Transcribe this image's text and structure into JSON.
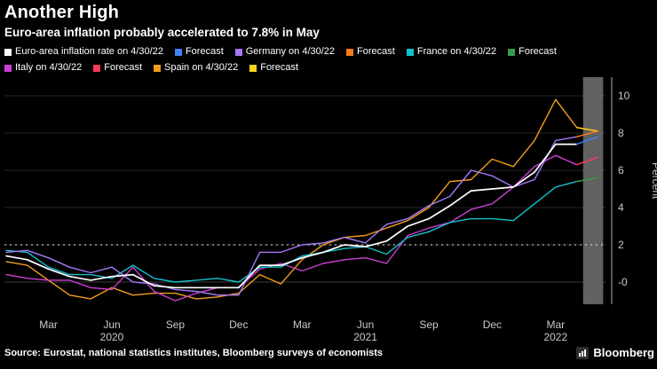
{
  "header": {
    "title": "Another High",
    "subtitle": "Euro-area inflation probably accelerated to 7.8% in May"
  },
  "footer": {
    "source": "Source: Eurostat, national statistics institutes, Bloomberg surveys of economists",
    "brand": "Bloomberg"
  },
  "chart_data": {
    "type": "line",
    "x_monthly_start": "2020-01",
    "x_ticks": [
      {
        "index": 2,
        "label": "Mar"
      },
      {
        "index": 5,
        "label": "Jun"
      },
      {
        "index": 8,
        "label": "Sep"
      },
      {
        "index": 11,
        "label": "Dec"
      },
      {
        "index": 14,
        "label": "Mar"
      },
      {
        "index": 17,
        "label": "Jun"
      },
      {
        "index": 20,
        "label": "Sep"
      },
      {
        "index": 23,
        "label": "Dec"
      },
      {
        "index": 26,
        "label": "Mar"
      }
    ],
    "year_labels": [
      {
        "index": 5,
        "label": "2020"
      },
      {
        "index": 17,
        "label": "2021"
      },
      {
        "index": 26,
        "label": "2022"
      }
    ],
    "ylabel": "Percent",
    "ylim": [
      -1.2,
      10.9
    ],
    "yticks": [
      {
        "value": 10,
        "label": "10"
      },
      {
        "value": 8,
        "label": "8"
      },
      {
        "value": 6,
        "label": "6"
      },
      {
        "value": 4,
        "label": "4"
      },
      {
        "value": 2,
        "label": "2"
      },
      {
        "value": 0,
        "label": "-0"
      }
    ],
    "reference_line": {
      "value": 2,
      "style": "dashed",
      "color": "#e8e8e8"
    },
    "forecast_band": {
      "start_index": 27.3,
      "end_index": 28.25,
      "color": "#616161"
    },
    "grid_color": "#262626",
    "axis_color": "#ababab",
    "tick_label_color": "#c9c9c9",
    "series": [
      {
        "key": "euro-area",
        "name": "Euro-area inflation rate on 4/30/22",
        "color": "#ffffff",
        "width": 1.7,
        "values": [
          1.4,
          1.2,
          0.7,
          0.3,
          0.1,
          0.3,
          0.4,
          -0.2,
          -0.3,
          -0.3,
          -0.3,
          -0.3,
          0.9,
          0.9,
          1.3,
          1.6,
          2.0,
          1.9,
          2.2,
          3.0,
          3.4,
          4.1,
          4.9,
          5.0,
          5.1,
          5.9,
          7.4,
          7.4
        ],
        "forecast": {
          "label": "Forecast",
          "color": "#3f82f7",
          "value": 7.8
        }
      },
      {
        "key": "germany",
        "name": "Germany on 4/30/22",
        "color": "#a579f7",
        "width": 1.4,
        "values": [
          1.6,
          1.7,
          1.3,
          0.8,
          0.5,
          0.8,
          0.0,
          -0.1,
          -0.4,
          -0.5,
          -0.7,
          -0.7,
          1.6,
          1.6,
          2.0,
          2.1,
          2.4,
          2.1,
          3.1,
          3.4,
          4.1,
          4.6,
          6.0,
          5.7,
          5.1,
          5.5,
          7.6,
          7.8
        ],
        "forecast": {
          "label": "Forecast",
          "color": "#fb7b16",
          "value": 8.1
        }
      },
      {
        "key": "france",
        "name": "France on 4/30/22",
        "color": "#13c1cd",
        "width": 1.4,
        "values": [
          1.7,
          1.6,
          0.8,
          0.4,
          0.4,
          0.2,
          0.9,
          0.2,
          0.0,
          0.1,
          0.2,
          0.0,
          0.8,
          0.8,
          1.4,
          1.6,
          1.8,
          1.9,
          1.5,
          2.4,
          2.7,
          3.2,
          3.4,
          3.4,
          3.3,
          4.2,
          5.1,
          5.4
        ],
        "forecast": {
          "label": "Forecast",
          "color": "#369c4c",
          "value": 5.6
        }
      },
      {
        "key": "italy",
        "name": "Italy on 4/30/22",
        "color": "#cb3fd4",
        "width": 1.4,
        "values": [
          0.4,
          0.2,
          0.1,
          0.1,
          -0.3,
          -0.4,
          0.8,
          -0.5,
          -1.0,
          -0.6,
          -0.3,
          -0.3,
          0.7,
          1.0,
          0.6,
          1.0,
          1.2,
          1.3,
          1.0,
          2.5,
          2.9,
          3.2,
          3.9,
          4.2,
          5.1,
          6.2,
          6.8,
          6.3
        ],
        "forecast": {
          "label": "Forecast",
          "color": "#f8395a",
          "value": 6.7
        }
      },
      {
        "key": "spain",
        "name": "Spain on 4/30/22",
        "color": "#f39c1d",
        "width": 1.4,
        "values": [
          1.1,
          0.9,
          0.1,
          -0.7,
          -0.9,
          -0.3,
          -0.7,
          -0.6,
          -0.6,
          -0.9,
          -0.8,
          -0.6,
          0.4,
          -0.1,
          1.2,
          2.0,
          2.4,
          2.5,
          2.9,
          3.3,
          4.0,
          5.4,
          5.5,
          6.6,
          6.2,
          7.6,
          9.8,
          8.3
        ],
        "forecast": {
          "label": "Forecast",
          "color": "#ffd21f",
          "value": 8.1
        }
      }
    ]
  }
}
